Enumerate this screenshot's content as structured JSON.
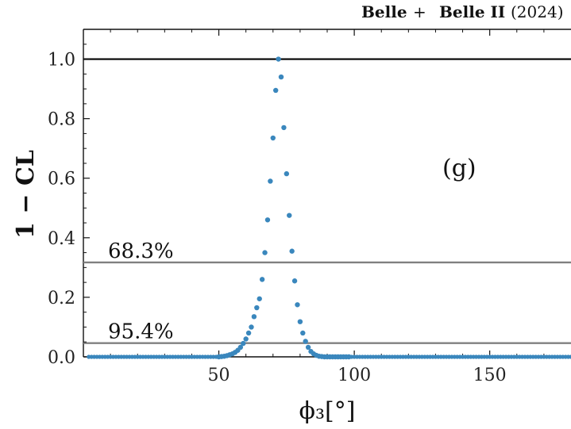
{
  "chart_data": {
    "type": "scatter",
    "header": {
      "belle": "Belle",
      "plus": "+",
      "belle2": "Belle II",
      "year": "(2024)"
    },
    "panel_label": "(g)",
    "xlabel": "ϕ₃[°]",
    "ylabel": "1 − CL",
    "xlim": [
      0,
      180
    ],
    "ylim": [
      0,
      1.1
    ],
    "x_ticks": [
      50,
      100,
      150
    ],
    "y_ticks": [
      0.0,
      0.2,
      0.4,
      0.6,
      0.8,
      1.0
    ],
    "y_tick_labels": [
      "0.0",
      "0.2",
      "0.4",
      "0.6",
      "0.8",
      "1.0"
    ],
    "grid": false,
    "reference_lines": [
      {
        "y": 1.0,
        "label": "",
        "color": "#000000"
      },
      {
        "y": 0.317,
        "label": "68.3%",
        "color": "#808080"
      },
      {
        "y": 0.046,
        "label": "95.4%",
        "color": "#808080"
      }
    ],
    "series": [
      {
        "color": "#3a87bd",
        "x": [
          50,
          51,
          52,
          53,
          54,
          55,
          56,
          57,
          58,
          59,
          60,
          61,
          62,
          63,
          64,
          65,
          66,
          67,
          68,
          69,
          70,
          71,
          72,
          73,
          74,
          75,
          76,
          77,
          78,
          79,
          80,
          81,
          82,
          83,
          84,
          85,
          86,
          87,
          88,
          89,
          90,
          91,
          92,
          93,
          94,
          95,
          96,
          97,
          98
        ],
        "y": [
          0.0,
          0.001,
          0.002,
          0.004,
          0.007,
          0.01,
          0.015,
          0.022,
          0.032,
          0.045,
          0.06,
          0.08,
          0.1,
          0.135,
          0.165,
          0.195,
          0.26,
          0.35,
          0.46,
          0.59,
          0.735,
          0.895,
          1.0,
          0.94,
          0.77,
          0.615,
          0.475,
          0.355,
          0.255,
          0.175,
          0.118,
          0.08,
          0.052,
          0.032,
          0.018,
          0.01,
          0.005,
          0.002,
          0.001,
          0.0,
          0.0,
          0.0,
          0.0,
          0.0,
          0.0,
          0.0,
          0.0,
          0.0,
          0.0
        ]
      }
    ]
  }
}
